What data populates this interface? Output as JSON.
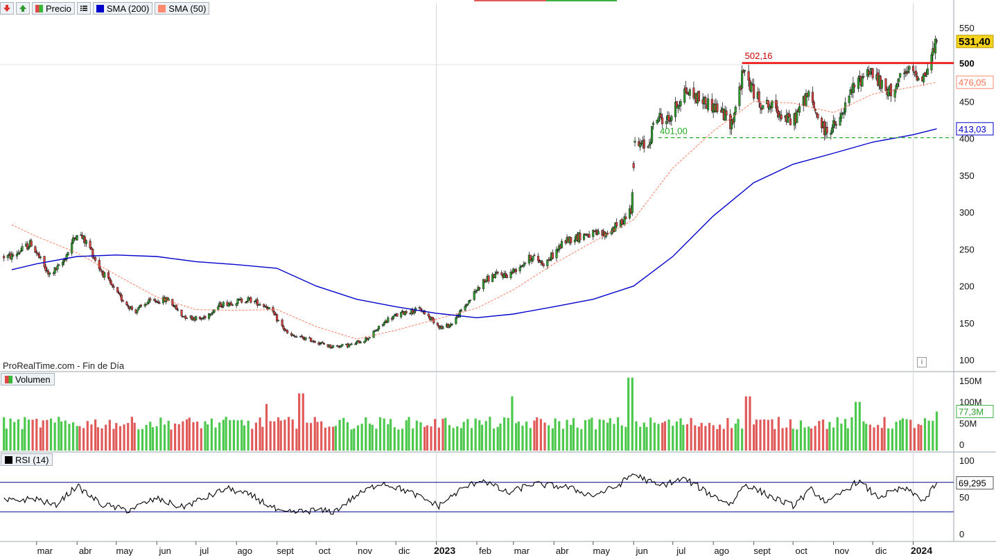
{
  "toolbar": {
    "price_label": "Precio",
    "sma200_label": "SMA (200)",
    "sma50_label": "SMA (50)",
    "icons": [
      "arrow-down-icon",
      "arrow-up-icon",
      "list-icon"
    ]
  },
  "watermark": "ProRealTime.com - Fin de Día",
  "volume_panel_label": "Volumen",
  "rsi_panel_label": "RSI (14)",
  "colors": {
    "up": "#38b838",
    "down": "#e04848",
    "sma200": "#0000cc",
    "sma50": "#ff7b5c",
    "resistance": "#ee0000",
    "support": "#22aa22",
    "rsi": "#000000",
    "rsi_band": "#00008b"
  },
  "chart_data": {
    "type": "candlestick",
    "title": "",
    "x_ticks": [
      {
        "date": "2022-03-01",
        "label": "mar"
      },
      {
        "date": "2022-04-01",
        "label": "abr"
      },
      {
        "date": "2022-05-01",
        "label": "may"
      },
      {
        "date": "2022-06-01",
        "label": "jun"
      },
      {
        "date": "2022-07-01",
        "label": "jul"
      },
      {
        "date": "2022-08-01",
        "label": "ago"
      },
      {
        "date": "2022-09-01",
        "label": "sept"
      },
      {
        "date": "2022-10-01",
        "label": "oct"
      },
      {
        "date": "2022-11-01",
        "label": "nov"
      },
      {
        "date": "2022-12-01",
        "label": "dic"
      },
      {
        "date": "2023-01-01",
        "label": "2023",
        "bold": true
      },
      {
        "date": "2023-02-01",
        "label": "feb"
      },
      {
        "date": "2023-03-01",
        "label": "mar"
      },
      {
        "date": "2023-04-01",
        "label": "abr"
      },
      {
        "date": "2023-05-01",
        "label": "may"
      },
      {
        "date": "2023-06-01",
        "label": "jun"
      },
      {
        "date": "2023-07-01",
        "label": "jul"
      },
      {
        "date": "2023-08-01",
        "label": "ago"
      },
      {
        "date": "2023-09-01",
        "label": "sept"
      },
      {
        "date": "2023-10-01",
        "label": "oct"
      },
      {
        "date": "2023-11-01",
        "label": "nov"
      },
      {
        "date": "2023-12-01",
        "label": "dic"
      },
      {
        "date": "2024-01-01",
        "label": "2024",
        "bold": true
      }
    ],
    "price_axis": {
      "ticks": [
        100,
        150,
        200,
        250,
        300,
        350,
        400,
        450,
        500,
        550
      ],
      "ylim": [
        92,
        560
      ]
    },
    "price_markers": {
      "last": {
        "value": 531.4,
        "label": "531,40"
      },
      "resistance": {
        "value": 502.16,
        "label": "502,16",
        "axis_label": "500",
        "start_date": "2023-08-23"
      },
      "support": {
        "value": 401.0,
        "label": "401,00",
        "start_date": "2023-06-20"
      },
      "sma50": {
        "value": 476.05,
        "label": "476,05"
      },
      "sma200": {
        "value": 413.03,
        "label": "413,03"
      }
    },
    "price_series": {
      "close": [
        [
          "2022-02-10",
          240
        ],
        [
          "2022-02-25",
          258
        ],
        [
          "2022-03-10",
          215
        ],
        [
          "2022-03-20",
          228
        ],
        [
          "2022-04-01",
          273
        ],
        [
          "2022-04-10",
          255
        ],
        [
          "2022-04-18",
          225
        ],
        [
          "2022-05-01",
          190
        ],
        [
          "2022-05-15",
          165
        ],
        [
          "2022-05-25",
          178
        ],
        [
          "2022-06-10",
          182
        ],
        [
          "2022-06-20",
          160
        ],
        [
          "2022-07-05",
          155
        ],
        [
          "2022-07-20",
          175
        ],
        [
          "2022-08-10",
          182
        ],
        [
          "2022-08-25",
          172
        ],
        [
          "2022-09-10",
          133
        ],
        [
          "2022-09-25",
          128
        ],
        [
          "2022-10-12",
          118
        ],
        [
          "2022-10-28",
          120
        ],
        [
          "2022-11-10",
          130
        ],
        [
          "2022-11-25",
          155
        ],
        [
          "2022-12-08",
          165
        ],
        [
          "2022-12-20",
          168
        ],
        [
          "2023-01-05",
          143
        ],
        [
          "2023-01-12",
          148
        ],
        [
          "2023-01-22",
          170
        ],
        [
          "2023-02-05",
          205
        ],
        [
          "2023-02-15",
          215
        ],
        [
          "2023-02-25",
          215
        ],
        [
          "2023-03-15",
          240
        ],
        [
          "2023-03-25",
          230
        ],
        [
          "2023-04-10",
          262
        ],
        [
          "2023-04-25",
          270
        ],
        [
          "2023-05-10",
          270
        ],
        [
          "2023-05-22",
          285
        ],
        [
          "2023-05-30",
          305
        ],
        [
          "2023-06-02",
          390
        ],
        [
          "2023-06-12",
          390
        ],
        [
          "2023-06-18",
          430
        ],
        [
          "2023-06-28",
          425
        ],
        [
          "2023-07-10",
          465
        ],
        [
          "2023-07-25",
          450
        ],
        [
          "2023-08-05",
          440
        ],
        [
          "2023-08-15",
          420
        ],
        [
          "2023-08-24",
          490
        ],
        [
          "2023-09-05",
          450
        ],
        [
          "2023-09-18",
          440
        ],
        [
          "2023-09-30",
          420
        ],
        [
          "2023-10-12",
          460
        ],
        [
          "2023-10-25",
          410
        ],
        [
          "2023-11-05",
          420
        ],
        [
          "2023-11-15",
          465
        ],
        [
          "2023-11-28",
          495
        ],
        [
          "2023-12-12",
          460
        ],
        [
          "2023-12-28",
          490
        ],
        [
          "2024-01-10",
          485
        ],
        [
          "2024-01-19",
          531.4
        ]
      ],
      "sma50": [
        [
          "2022-02-10",
          283
        ],
        [
          "2022-03-01",
          267
        ],
        [
          "2022-04-01",
          245
        ],
        [
          "2022-05-01",
          215
        ],
        [
          "2022-06-01",
          185
        ],
        [
          "2022-07-01",
          168
        ],
        [
          "2022-08-01",
          167
        ],
        [
          "2022-09-01",
          168
        ],
        [
          "2022-10-01",
          145
        ],
        [
          "2022-11-01",
          128
        ],
        [
          "2022-12-01",
          140
        ],
        [
          "2023-01-01",
          155
        ],
        [
          "2023-02-01",
          170
        ],
        [
          "2023-03-01",
          195
        ],
        [
          "2023-04-01",
          230
        ],
        [
          "2023-05-01",
          260
        ],
        [
          "2023-06-01",
          290
        ],
        [
          "2023-07-01",
          360
        ],
        [
          "2023-08-01",
          410
        ],
        [
          "2023-09-01",
          450
        ],
        [
          "2023-10-01",
          448
        ],
        [
          "2023-11-01",
          435
        ],
        [
          "2023-12-01",
          460
        ],
        [
          "2024-01-01",
          470
        ],
        [
          "2024-01-19",
          476.05
        ]
      ],
      "sma200": [
        [
          "2022-02-10",
          222
        ],
        [
          "2022-03-01",
          230
        ],
        [
          "2022-04-01",
          240
        ],
        [
          "2022-05-01",
          242
        ],
        [
          "2022-06-01",
          240
        ],
        [
          "2022-07-01",
          233
        ],
        [
          "2022-08-01",
          229
        ],
        [
          "2022-09-01",
          224
        ],
        [
          "2022-10-01",
          200
        ],
        [
          "2022-11-01",
          182
        ],
        [
          "2022-12-01",
          172
        ],
        [
          "2023-01-01",
          163
        ],
        [
          "2023-02-01",
          157
        ],
        [
          "2023-03-01",
          162
        ],
        [
          "2023-04-01",
          172
        ],
        [
          "2023-05-01",
          182
        ],
        [
          "2023-06-01",
          200
        ],
        [
          "2023-07-01",
          240
        ],
        [
          "2023-08-01",
          295
        ],
        [
          "2023-09-01",
          340
        ],
        [
          "2023-10-01",
          365
        ],
        [
          "2023-11-01",
          380
        ],
        [
          "2023-12-01",
          395
        ],
        [
          "2024-01-01",
          405
        ],
        [
          "2024-01-19",
          413.03
        ]
      ]
    },
    "volume_axis": {
      "ticks": [
        0,
        50,
        100,
        150
      ],
      "tick_labels": [
        "0",
        "50M",
        "100M",
        "150M"
      ],
      "ylim": [
        0,
        170
      ],
      "unit": "M"
    },
    "volume_last": {
      "value": 77.3,
      "label": "77,3M"
    },
    "volume_peaks": [
      [
        "2022-09-20",
        120
      ],
      [
        "2022-08-25",
        95
      ],
      [
        "2023-02-28",
        113
      ],
      [
        "2023-05-30",
        157
      ],
      [
        "2023-08-28",
        113
      ],
      [
        "2023-11-20",
        100
      ],
      [
        "2024-01-19",
        77.3
      ]
    ],
    "rsi_axis": {
      "ticks": [
        0,
        50,
        100
      ],
      "overbought": 70,
      "oversold": 30,
      "ylim": [
        -5,
        105
      ]
    },
    "rsi_last": {
      "value": 69.295,
      "label": "69,295"
    },
    "rsi_series": [
      [
        "2022-02-10",
        45
      ],
      [
        "2022-03-01",
        48
      ],
      [
        "2022-03-15",
        38
      ],
      [
        "2022-04-01",
        65
      ],
      [
        "2022-04-20",
        40
      ],
      [
        "2022-05-10",
        32
      ],
      [
        "2022-06-01",
        48
      ],
      [
        "2022-06-20",
        36
      ],
      [
        "2022-07-10",
        50
      ],
      [
        "2022-07-25",
        62
      ],
      [
        "2022-08-15",
        50
      ],
      [
        "2022-09-05",
        28
      ],
      [
        "2022-10-01",
        32
      ],
      [
        "2022-10-15",
        30
      ],
      [
        "2022-11-01",
        52
      ],
      [
        "2022-11-20",
        70
      ],
      [
        "2022-12-10",
        58
      ],
      [
        "2023-01-03",
        38
      ],
      [
        "2023-01-20",
        60
      ],
      [
        "2023-02-05",
        74
      ],
      [
        "2023-02-25",
        55
      ],
      [
        "2023-03-15",
        68
      ],
      [
        "2023-04-10",
        64
      ],
      [
        "2023-05-01",
        52
      ],
      [
        "2023-05-20",
        65
      ],
      [
        "2023-06-01",
        82
      ],
      [
        "2023-06-20",
        65
      ],
      [
        "2023-07-10",
        75
      ],
      [
        "2023-08-01",
        52
      ],
      [
        "2023-08-15",
        40
      ],
      [
        "2023-08-25",
        68
      ],
      [
        "2023-09-15",
        50
      ],
      [
        "2023-10-01",
        38
      ],
      [
        "2023-10-15",
        60
      ],
      [
        "2023-10-28",
        42
      ],
      [
        "2023-11-20",
        72
      ],
      [
        "2023-12-05",
        50
      ],
      [
        "2023-12-25",
        62
      ],
      [
        "2024-01-10",
        45
      ],
      [
        "2024-01-19",
        69.295
      ]
    ]
  }
}
